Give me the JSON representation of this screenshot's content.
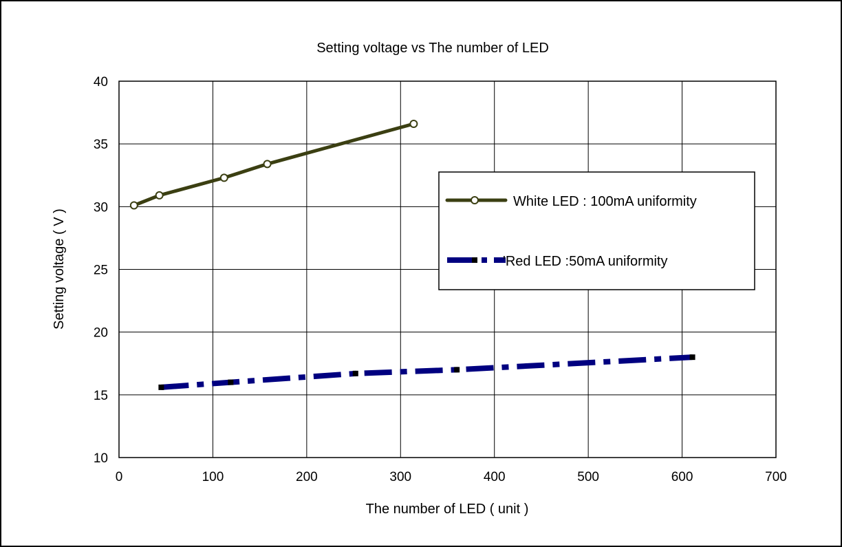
{
  "chart_data": {
    "type": "line",
    "title": "Setting voltage  vs  The number of LED",
    "xlabel": "The number of LED ( unit )",
    "ylabel": "Setting voltage ( V )",
    "xlim": [
      0,
      700
    ],
    "ylim": [
      10,
      40
    ],
    "xticks": [
      0,
      100,
      200,
      300,
      400,
      500,
      600,
      700
    ],
    "yticks": [
      10,
      15,
      20,
      25,
      30,
      35,
      40
    ],
    "grid": true,
    "legend_position": "right",
    "series": [
      {
        "name": "White LED : 100mA uniformity",
        "color": "#3b3f12",
        "style": "solid-with-circle-markers",
        "x": [
          16,
          43,
          112,
          158,
          314
        ],
        "y": [
          30.1,
          30.9,
          32.3,
          33.4,
          36.6
        ]
      },
      {
        "name": "'Red LED :50mA uniformity",
        "color": "#000080",
        "style": "dash-dot-with-square-markers",
        "x": [
          45,
          119,
          252,
          360,
          611
        ],
        "y": [
          15.6,
          16.0,
          16.7,
          17.0,
          18.0
        ]
      }
    ]
  }
}
